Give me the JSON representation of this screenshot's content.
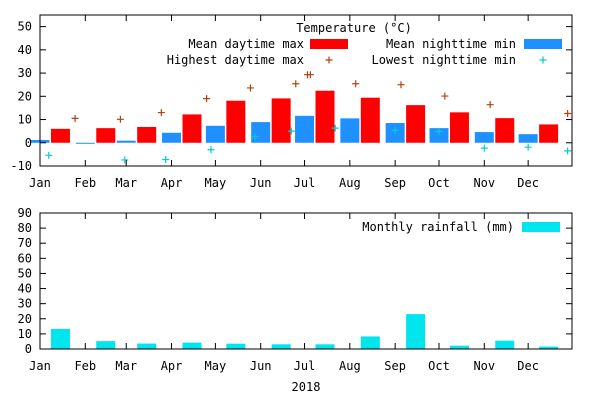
{
  "figure": {
    "xlabel": "2018"
  },
  "chart_data": [
    {
      "type": "bar",
      "title": "Temperature (°C)",
      "months": [
        "Jan",
        "Feb",
        "Mar",
        "Apr",
        "May",
        "Jun",
        "Jul",
        "Aug",
        "Sep",
        "Oct",
        "Nov",
        "Dec"
      ],
      "ylim": [
        -10,
        55
      ],
      "yticks": [
        -10,
        0,
        10,
        20,
        30,
        40,
        50
      ],
      "grid": false,
      "legend_position": "top-right",
      "series": [
        {
          "name": "Mean daytime max",
          "kind": "bar",
          "color": "#ff0000",
          "x": [
            "2018-01-15",
            "2018-02-15",
            "2018-03-15",
            "2018-04-15",
            "2018-05-15",
            "2018-06-15",
            "2018-07-15",
            "2018-08-15",
            "2018-09-15",
            "2018-10-15",
            "2018-11-15",
            "2018-12-15"
          ],
          "values": [
            6,
            6.3,
            6.8,
            12.2,
            18.1,
            19.1,
            22.4,
            19.4,
            16.2,
            13.1,
            10.6,
            7.9
          ]
        },
        {
          "name": "Mean nighttime min",
          "kind": "bar",
          "color": "#1e90ff",
          "x": [
            "2018-01-01",
            "2018-02-01",
            "2018-03-01",
            "2018-04-01",
            "2018-05-01",
            "2018-06-01",
            "2018-07-01",
            "2018-08-01",
            "2018-09-01",
            "2018-10-01",
            "2018-11-01",
            "2018-12-01"
          ],
          "values": [
            1.2,
            -0.2,
            0.9,
            4.3,
            7.3,
            8.9,
            11.6,
            10.5,
            8.5,
            6.3,
            4.6,
            3.7
          ]
        },
        {
          "name": "Highest daytime max",
          "kind": "points",
          "marker": "+",
          "color": "#b5400c",
          "x": [
            "2018-01-25",
            "2018-02-25",
            "2018-03-25",
            "2018-04-25",
            "2018-05-25",
            "2018-06-25",
            "2018-07-03",
            "2018-07-05",
            "2018-08-05",
            "2018-09-05",
            "2018-10-05",
            "2018-11-05",
            "2018-12-28"
          ],
          "values": [
            10.5,
            10.1,
            13,
            19,
            23.6,
            25.4,
            29.3,
            29.3,
            25.4,
            25,
            20.1,
            16.4,
            12.6
          ]
        },
        {
          "name": "Lowest nighttime min",
          "kind": "points",
          "marker": "+",
          "color": "#00cdcd",
          "x": [
            "2018-01-07",
            "2018-02-28",
            "2018-03-28",
            "2018-04-28",
            "2018-05-28",
            "2018-06-22",
            "2018-07-22",
            "2018-09-01",
            "2018-10-01",
            "2018-11-01",
            "2018-12-01",
            "2018-12-28"
          ],
          "values": [
            -5.4,
            -7.4,
            -7.2,
            -3,
            2.6,
            5,
            6.3,
            5.4,
            4.9,
            -2.3,
            -1.9,
            -3.5
          ]
        }
      ]
    },
    {
      "type": "bar",
      "months": [
        "Jan",
        "Feb",
        "Mar",
        "Apr",
        "May",
        "Jun",
        "Jul",
        "Aug",
        "Sep",
        "Oct",
        "Nov",
        "Dec"
      ],
      "ylim": [
        0,
        90
      ],
      "yticks": [
        0,
        10,
        20,
        30,
        40,
        50,
        60,
        70,
        80,
        90
      ],
      "grid": false,
      "legend_position": "top-right",
      "series": [
        {
          "name": "Monthly rainfall (mm)",
          "kind": "bar",
          "color": "#00e5ee",
          "x": [
            "2018-01-15",
            "2018-02-15",
            "2018-03-15",
            "2018-04-15",
            "2018-05-15",
            "2018-06-15",
            "2018-07-15",
            "2018-08-15",
            "2018-09-15",
            "2018-10-15",
            "2018-11-15",
            "2018-12-15"
          ],
          "values": [
            13.3,
            5.2,
            3.6,
            4.2,
            3.5,
            3.1,
            3.1,
            8.3,
            23.1,
            2.2,
            5.5,
            1.6
          ]
        }
      ]
    }
  ]
}
